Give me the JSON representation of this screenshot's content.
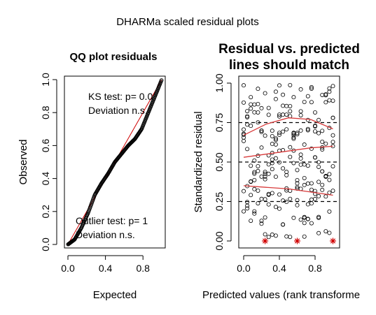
{
  "outer_title": "DHARMa scaled residual plots",
  "qq_panel": {
    "title": "QQ plot residuals",
    "xlabel": "Expected",
    "ylabel": "Observed",
    "x_ticks": [
      "0.0",
      "0.4",
      "0.8"
    ],
    "y_ticks": [
      "0.0",
      "0.2",
      "0.4",
      "0.6",
      "0.8",
      "1.0"
    ],
    "ks_test": "KS test: p= 0.0",
    "ks_deviation": "Deviation n.s.",
    "outlier_test": "Outlier test: p= 1",
    "outlier_deviation": "Deviation n.s."
  },
  "rv_panel": {
    "title_line1": "Residual vs. predicted",
    "title_line2": "lines should match",
    "xlabel": "Predicted values (rank transforme",
    "ylabel": "Standardized residual",
    "x_ticks": [
      "0.0",
      "0.4",
      "0.8"
    ],
    "y_ticks": [
      "0.00",
      "0.25",
      "0.50",
      "0.75",
      "1.00"
    ]
  },
  "colors": {
    "reference_line": "#d00000",
    "quantile_line": "#d83a3a",
    "outlier_marker": "#d00000"
  },
  "chart_data": [
    {
      "type": "scatter",
      "panel": "qq",
      "title": "QQ plot residuals",
      "xlabel": "Expected",
      "ylabel": "Observed",
      "xlim": [
        0,
        1
      ],
      "ylim": [
        0,
        1
      ],
      "reference_line": "y = x",
      "observed_quantiles": [
        0.0,
        0.03,
        0.1,
        0.19,
        0.3,
        0.37,
        0.43,
        0.5,
        0.55,
        0.6,
        0.64,
        0.7,
        0.8,
        0.9,
        1.0
      ]
    },
    {
      "type": "scatter",
      "panel": "residual_vs_predicted",
      "title": "Residual vs. predicted lines should match",
      "xlabel": "Predicted values (rank transforme",
      "ylabel": "Standardized residual",
      "xlim": [
        0,
        1
      ],
      "ylim": [
        0,
        1
      ],
      "hlines": [
        0.25,
        0.5,
        0.75
      ],
      "x_levels": [
        0.0,
        0.04,
        0.08,
        0.12,
        0.16,
        0.2,
        0.24,
        0.28,
        0.32,
        0.36,
        0.4,
        0.44,
        0.48,
        0.52,
        0.56,
        0.6,
        0.64,
        0.68,
        0.72,
        0.76,
        0.8,
        0.84,
        0.88,
        0.92,
        0.96,
        1.0
      ],
      "points_per_level": 9,
      "quantile_curves": [
        {
          "quantile": 0.25,
          "x": [
            0.0,
            0.25,
            0.5,
            0.75,
            1.0
          ],
          "y": [
            0.35,
            0.34,
            0.33,
            0.31,
            0.29
          ]
        },
        {
          "quantile": 0.5,
          "x": [
            0.0,
            0.25,
            0.5,
            0.75,
            1.0
          ],
          "y": [
            0.53,
            0.55,
            0.57,
            0.59,
            0.6
          ]
        },
        {
          "quantile": 0.75,
          "x": [
            0.0,
            0.25,
            0.5,
            0.75,
            1.0
          ],
          "y": [
            0.67,
            0.74,
            0.78,
            0.77,
            0.71
          ]
        }
      ],
      "outliers": [
        {
          "x": 0.24,
          "y": 0.0
        },
        {
          "x": 0.6,
          "y": 0.0
        },
        {
          "x": 1.0,
          "y": 0.0
        }
      ]
    }
  ]
}
